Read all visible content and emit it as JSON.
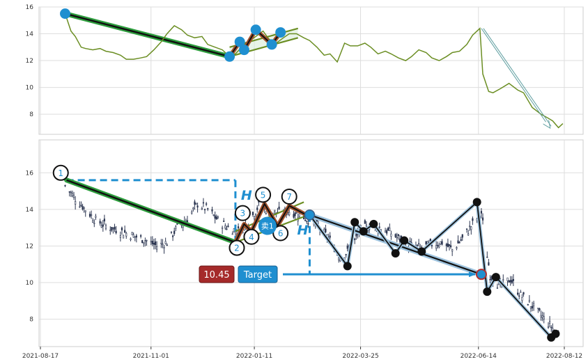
{
  "chart_data": [
    {
      "type": "line",
      "panel": "top",
      "ylim": [
        6.5,
        16
      ],
      "yticks": [
        "16",
        "14",
        "12",
        "10",
        "8"
      ],
      "grid": true,
      "series": [
        {
          "color": "#6b8e23",
          "x": [
            "2021-09-03",
            "2021-09-07",
            "2021-09-10",
            "2021-09-14",
            "2021-09-17",
            "2021-09-22",
            "2021-09-27",
            "2021-10-01",
            "2021-10-06",
            "2021-10-11",
            "2021-10-15",
            "2021-10-20",
            "2021-10-25",
            "2021-10-29",
            "2021-11-03",
            "2021-11-08",
            "2021-11-12",
            "2021-11-17",
            "2021-11-22",
            "2021-11-26",
            "2021-12-01",
            "2021-12-06",
            "2021-12-10",
            "2021-12-15",
            "2021-12-20",
            "2021-12-24",
            "2021-12-29",
            "2022-01-04",
            "2022-01-07",
            "2022-01-12",
            "2022-01-17",
            "2022-01-21",
            "2022-01-26",
            "2022-01-31",
            "2022-02-04",
            "2022-02-09",
            "2022-02-14",
            "2022-02-18",
            "2022-02-23",
            "2022-02-28",
            "2022-03-04",
            "2022-03-09",
            "2022-03-14",
            "2022-03-18",
            "2022-03-23",
            "2022-03-28",
            "2022-04-01",
            "2022-04-06",
            "2022-04-11",
            "2022-04-15",
            "2022-04-20",
            "2022-04-25",
            "2022-04-29",
            "2022-05-04",
            "2022-05-09",
            "2022-05-13",
            "2022-05-18",
            "2022-05-23",
            "2022-05-27",
            "2022-06-01",
            "2022-06-06",
            "2022-06-10",
            "2022-06-15",
            "2022-06-17",
            "2022-06-21",
            "2022-06-24",
            "2022-06-29",
            "2022-07-05",
            "2022-07-11",
            "2022-07-15",
            "2022-07-21",
            "2022-07-27",
            "2022-08-01",
            "2022-08-04",
            "2022-08-08",
            "2022-08-11"
          ],
          "y": [
            15.5,
            14.2,
            13.8,
            13.0,
            12.9,
            12.8,
            12.9,
            12.7,
            12.6,
            12.4,
            12.1,
            12.1,
            12.2,
            12.3,
            12.8,
            13.4,
            14.0,
            14.6,
            14.3,
            13.9,
            13.7,
            13.8,
            13.2,
            13.0,
            12.8,
            12.4,
            12.5,
            13.2,
            13.4,
            13.8,
            14.2,
            13.6,
            13.3,
            13.7,
            14.0,
            14.0,
            13.7,
            13.5,
            13.0,
            12.4,
            12.5,
            11.9,
            13.3,
            13.1,
            13.1,
            13.3,
            13.0,
            12.5,
            12.7,
            12.5,
            12.2,
            12.0,
            12.3,
            12.8,
            12.6,
            12.2,
            12.0,
            12.3,
            12.6,
            12.7,
            13.2,
            13.9,
            14.4,
            11.0,
            9.7,
            9.6,
            9.9,
            10.3,
            9.8,
            9.6,
            8.5,
            8.0,
            7.7,
            7.5,
            7.0,
            7.3
          ]
        }
      ],
      "pattern_points": [
        {
          "x": "2021-09-03",
          "y": 15.5
        },
        {
          "x": "2021-12-25",
          "y": 12.3
        },
        {
          "x": "2022-01-01",
          "y": 13.4
        },
        {
          "x": "2022-01-04",
          "y": 12.8
        },
        {
          "x": "2022-01-12",
          "y": 14.3
        },
        {
          "x": "2022-01-23",
          "y": 13.2
        },
        {
          "x": "2022-01-29",
          "y": 14.1
        }
      ],
      "trend_lines": [
        {
          "from": {
            "x": "2021-12-25",
            "y": 12.3
          },
          "to": {
            "x": "2022-02-10",
            "y": 13.7
          }
        },
        {
          "from": {
            "x": "2021-12-25",
            "y": 13.0
          },
          "to": {
            "x": "2022-02-10",
            "y": 14.4
          }
        }
      ],
      "arrow": {
        "from": {
          "x": "2022-06-16",
          "y": 14.4
        },
        "to": {
          "x": "2022-08-02",
          "y": 7.0
        }
      }
    },
    {
      "type": "candlestick",
      "panel": "bottom",
      "ylim": [
        6.5,
        17.8
      ],
      "yticks": [
        "16",
        "14",
        "12",
        "10",
        "8"
      ],
      "xticks": [
        "2021-08-17",
        "2021-11-01",
        "2022-01-11",
        "2022-03-25",
        "2022-06-14",
        "2022-08-12"
      ],
      "grid": true,
      "close_series": {
        "x": [
          "2021-09-03",
          "2021-09-10",
          "2021-09-17",
          "2021-09-24",
          "2021-10-01",
          "2021-10-08",
          "2021-10-15",
          "2021-10-22",
          "2021-10-29",
          "2021-11-05",
          "2021-11-12",
          "2021-11-19",
          "2021-11-26",
          "2021-12-03",
          "2021-12-10",
          "2021-12-17",
          "2021-12-24",
          "2021-12-31",
          "2022-01-07",
          "2022-01-14",
          "2022-01-21",
          "2022-01-28",
          "2022-02-04",
          "2022-02-11",
          "2022-02-18",
          "2022-02-25",
          "2022-03-04",
          "2022-03-11",
          "2022-03-18",
          "2022-03-25",
          "2022-04-01",
          "2022-04-08",
          "2022-04-15",
          "2022-04-22",
          "2022-04-29",
          "2022-05-06",
          "2022-05-13",
          "2022-05-20",
          "2022-05-27",
          "2022-06-03",
          "2022-06-10",
          "2022-06-16",
          "2022-06-22",
          "2022-06-29",
          "2022-07-06",
          "2022-07-13",
          "2022-07-20",
          "2022-07-27",
          "2022-08-03",
          "2022-08-08"
        ],
        "y": [
          15.3,
          14.6,
          14.0,
          13.4,
          13.1,
          12.9,
          12.7,
          12.5,
          12.3,
          12.0,
          12.2,
          13.0,
          13.5,
          14.3,
          14.0,
          13.4,
          13.0,
          12.8,
          13.3,
          14.2,
          13.9,
          13.8,
          13.9,
          13.7,
          13.4,
          13.0,
          12.3,
          11.4,
          11.8,
          12.9,
          13.1,
          13.0,
          12.7,
          12.3,
          12.0,
          11.9,
          12.1,
          12.2,
          11.8,
          12.4,
          13.2,
          13.8,
          10.4,
          9.8,
          10.2,
          9.3,
          8.8,
          8.2,
          7.6,
          7.1
        ]
      },
      "pattern_points": [
        {
          "label": "1",
          "x": "2021-08-31",
          "y": 16.0
        },
        {
          "label": "2",
          "x": "2021-12-30",
          "y": 11.9
        },
        {
          "label": "3",
          "x": "2022-01-03",
          "y": 13.8
        },
        {
          "label": "4",
          "x": "2022-01-09",
          "y": 12.5
        },
        {
          "label": "5",
          "x": "2022-01-17",
          "y": 14.8
        },
        {
          "label": "6",
          "x": "2022-01-29",
          "y": 12.7
        },
        {
          "label": "7",
          "x": "2022-02-04",
          "y": 14.7
        }
      ],
      "pattern_line": [
        {
          "x": "2021-09-04",
          "y": 15.6
        },
        {
          "x": "2021-12-29",
          "y": 12.2
        },
        {
          "x": "2022-01-04",
          "y": 13.2
        },
        {
          "x": "2022-01-09",
          "y": 12.8
        },
        {
          "x": "2022-01-18",
          "y": 14.3
        },
        {
          "x": "2022-01-27",
          "y": 13.1
        },
        {
          "x": "2022-02-04",
          "y": 14.2
        },
        {
          "x": "2022-02-18",
          "y": 13.6
        }
      ],
      "breakout": {
        "x": "2022-02-18",
        "y": 13.7
      },
      "sell_signal": {
        "label": "卖1",
        "x": "2022-01-20",
        "y": 13.1
      },
      "target_line": {
        "from": {
          "x": "2022-02-18",
          "y": 13.7
        },
        "to": {
          "x": "2022-06-16",
          "y": 10.45
        }
      },
      "swing_points": [
        {
          "x": "2022-03-16",
          "y": 10.9
        },
        {
          "x": "2022-03-21",
          "y": 13.3
        },
        {
          "x": "2022-03-27",
          "y": 12.8
        },
        {
          "x": "2022-04-03",
          "y": 13.2
        },
        {
          "x": "2022-04-18",
          "y": 11.6
        },
        {
          "x": "2022-04-24",
          "y": 12.3
        },
        {
          "x": "2022-05-06",
          "y": 11.7
        },
        {
          "x": "2022-06-13",
          "y": 14.4
        },
        {
          "x": "2022-06-20",
          "y": 9.5
        },
        {
          "x": "2022-06-26",
          "y": 10.3
        },
        {
          "x": "2022-08-03",
          "y": 7.0
        },
        {
          "x": "2022-08-06",
          "y": 7.2
        }
      ],
      "h_label": "H",
      "price_label": "10.45",
      "target_label": "Target"
    }
  ]
}
